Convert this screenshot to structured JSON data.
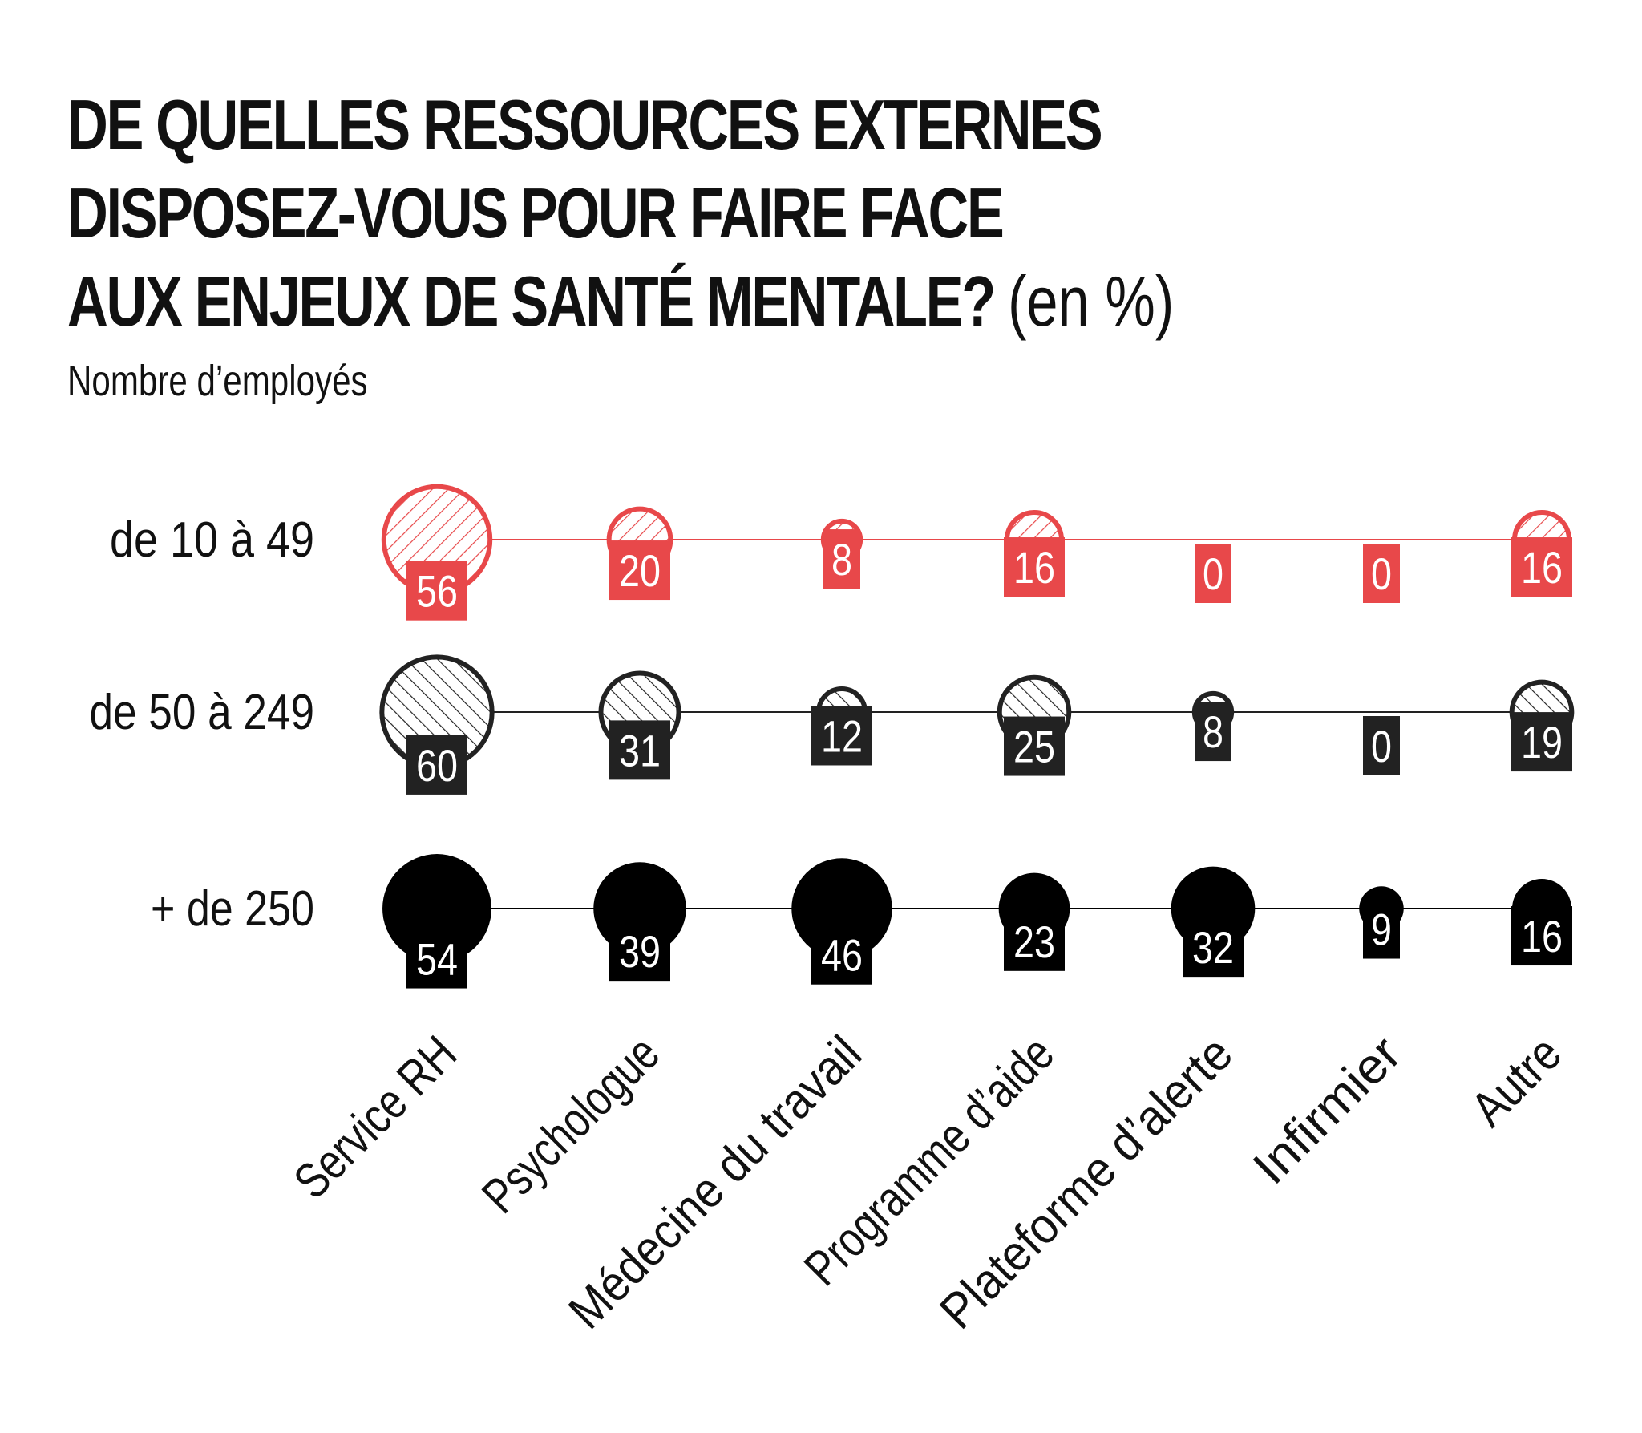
{
  "title": {
    "lines": [
      "DE QUELLES RESSOURCES EXTERNES",
      "DISPOSEZ-VOUS POUR FAIRE FACE",
      "AUX ENJEUX DE SANTÉ MENTALE?"
    ],
    "unit": "(en %)"
  },
  "subtitle": "Nombre d’employés",
  "colors": {
    "small": "#e8484a",
    "medium": "#222222",
    "large": "#000000",
    "text": "#111111"
  },
  "chart_data": {
    "type": "bubble",
    "title": "DE QUELLES RESSOURCES EXTERNES DISPOSEZ-VOUS POUR FAIRE FACE AUX ENJEUX DE SANTÉ MENTALE? (en %)",
    "subtitle": "Nombre d’employés",
    "categories": [
      "Service RH",
      "Psychologue",
      "Médecine du travail",
      "Programme d’aide",
      "Plateforme d’alerte",
      "Infirmier",
      "Autre"
    ],
    "series": [
      {
        "name": "de 10 à 49",
        "values": [
          56,
          20,
          8,
          16,
          0,
          0,
          16
        ],
        "style": "hatched-outline",
        "color": "#e8484a"
      },
      {
        "name": "de 50 à 249",
        "values": [
          60,
          31,
          12,
          25,
          8,
          0,
          19
        ],
        "style": "hatched-outline",
        "color": "#222222"
      },
      {
        "name": "+ de 250",
        "values": [
          54,
          39,
          46,
          23,
          32,
          9,
          16
        ],
        "style": "solid",
        "color": "#000000"
      }
    ]
  }
}
